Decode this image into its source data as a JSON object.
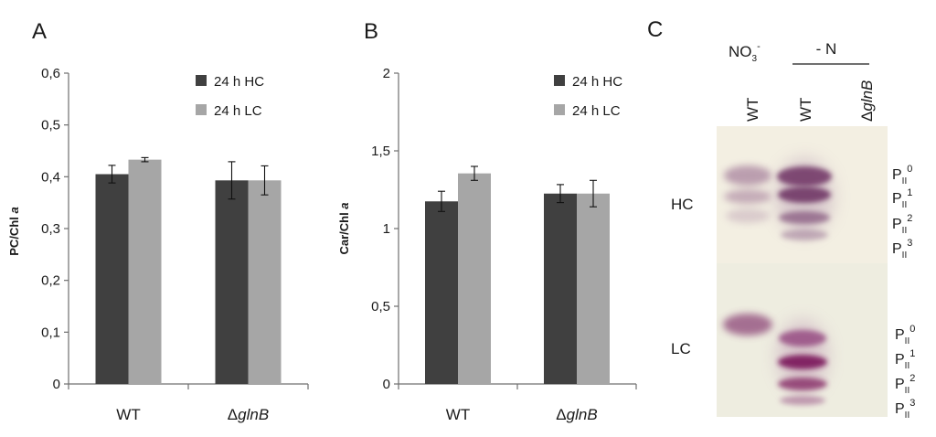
{
  "colors": {
    "hc": "#404040",
    "lc": "#a6a6a6",
    "axis": "#6f6f6f",
    "membrane": "#f2eedf",
    "band": "#7a2b63"
  },
  "chart_data": [
    {
      "panel": "A",
      "type": "bar",
      "ylabel": "PC/Chl",
      "ylabel_italic": "a",
      "ylim": [
        0,
        0.6
      ],
      "yticks": [
        "0",
        "0,1",
        "0,2",
        "0,3",
        "0,4",
        "0,5",
        "0,6"
      ],
      "categories": [
        {
          "pre": "",
          "italic": "",
          "text": "WT"
        },
        {
          "pre": "Δ",
          "italic": "glnB",
          "text": ""
        }
      ],
      "legend": [
        "24 h HC",
        "24 h LC"
      ],
      "series": [
        {
          "name": "24 h HC",
          "values": [
            0.405,
            0.393
          ],
          "errors": [
            0.017,
            0.036
          ]
        },
        {
          "name": "24 h LC",
          "values": [
            0.433,
            0.393
          ],
          "errors": [
            0.004,
            0.028
          ]
        }
      ]
    },
    {
      "panel": "B",
      "type": "bar",
      "ylabel": "Car/Chl",
      "ylabel_italic": "a",
      "ylim": [
        0,
        2
      ],
      "yticks": [
        "0",
        "0,5",
        "1",
        "1,5",
        "2"
      ],
      "categories": [
        {
          "pre": "",
          "italic": "",
          "text": "WT"
        },
        {
          "pre": "Δ",
          "italic": "glnB",
          "text": ""
        }
      ],
      "legend": [
        "24 h HC",
        "24 h LC"
      ],
      "series": [
        {
          "name": "24 h HC",
          "values": [
            1.175,
            1.225
          ],
          "errors": [
            0.065,
            0.058
          ]
        },
        {
          "name": "24 h LC",
          "values": [
            1.355,
            1.225
          ],
          "errors": [
            0.045,
            0.085
          ]
        }
      ]
    }
  ],
  "blot": {
    "panel": "C",
    "top_conditions": [
      {
        "id": "no3",
        "text": "NO",
        "sub": "3",
        "sup": "-"
      },
      {
        "id": "minus-n",
        "text": "- N",
        "sub": "",
        "sup": ""
      }
    ],
    "lanes": [
      {
        "pre": "",
        "italic": "",
        "text": "WT"
      },
      {
        "pre": "",
        "italic": "",
        "text": "WT"
      },
      {
        "pre": "Δ",
        "italic": "glnB",
        "text": ""
      }
    ],
    "conditions": [
      "HC",
      "LC"
    ],
    "band_prefix": "P",
    "band_sub": "II",
    "bands": [
      "0",
      "1",
      "2",
      "3"
    ]
  }
}
